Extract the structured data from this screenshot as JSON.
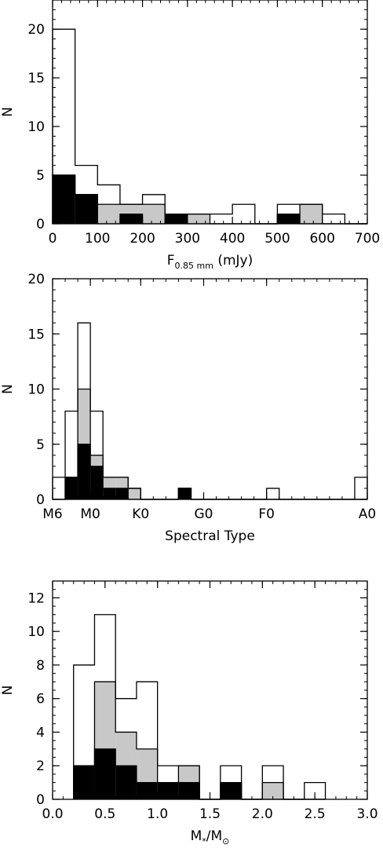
{
  "chart_data": [
    {
      "type": "bar",
      "xlabel": "F",
      "xlabel_sub": "0.85 mm",
      "xlabel_suffix": " (mJy)",
      "ylabel": "N",
      "xlim": [
        0,
        700
      ],
      "ylim": [
        0,
        23
      ],
      "xticks": [
        0,
        100,
        200,
        300,
        400,
        500,
        600,
        700
      ],
      "xtick_labels": [
        "0",
        "100",
        "200",
        "300",
        "400",
        "500",
        "600",
        "700"
      ],
      "yticks": [
        0,
        5,
        10,
        15,
        20
      ],
      "ytick_labels": [
        "0",
        "5",
        "10",
        "15",
        "20"
      ],
      "bin_edges": [
        0,
        50,
        100,
        150,
        200,
        250,
        300,
        350,
        400,
        450,
        500,
        550,
        600,
        650,
        700
      ],
      "series": [
        {
          "fill": "white",
          "values": [
            20,
            6,
            4,
            2,
            3,
            1,
            1,
            1,
            2,
            0,
            2,
            2,
            1,
            0
          ]
        },
        {
          "fill": "gray",
          "values": [
            5,
            3,
            2,
            2,
            2,
            1,
            1,
            0,
            0,
            0,
            1,
            2,
            0,
            0
          ]
        },
        {
          "fill": "black",
          "values": [
            5,
            3,
            0,
            1,
            0,
            1,
            0,
            0,
            0,
            0,
            1,
            0,
            0,
            0
          ]
        }
      ],
      "colors": {
        "white": "#ffffff",
        "gray": "#c8c8c8",
        "black": "#000000"
      }
    },
    {
      "type": "bar",
      "xlabel": "Spectral Type",
      "ylabel": "N",
      "xlim": [
        0,
        50
      ],
      "ylim": [
        0,
        20
      ],
      "xticks": [
        0,
        6,
        14,
        24,
        34,
        50
      ],
      "xtick_labels": [
        "M6",
        "M0",
        "K0",
        "G0",
        "F0",
        "A0"
      ],
      "yticks": [
        0,
        5,
        10,
        15,
        20
      ],
      "ytick_labels": [
        "0",
        "5",
        "10",
        "15",
        "20"
      ],
      "bin_edges": [
        0,
        2,
        4,
        6,
        8,
        10,
        12,
        14,
        16,
        18,
        20,
        22,
        24,
        26,
        28,
        30,
        32,
        34,
        36,
        38,
        40,
        42,
        44,
        46,
        48,
        50
      ],
      "series": [
        {
          "fill": "white",
          "values": [
            2,
            8,
            16,
            8,
            2,
            2,
            1,
            0,
            0,
            0,
            1,
            0,
            0,
            0,
            0,
            0,
            0,
            1,
            0,
            0,
            0,
            0,
            0,
            0,
            2
          ]
        },
        {
          "fill": "gray",
          "values": [
            0,
            2,
            10,
            4,
            2,
            2,
            1,
            0,
            0,
            0,
            1,
            0,
            0,
            0,
            0,
            0,
            0,
            0,
            0,
            0,
            0,
            0,
            0,
            0,
            0
          ]
        },
        {
          "fill": "black",
          "values": [
            0,
            2,
            5,
            3,
            1,
            1,
            0,
            0,
            0,
            0,
            1,
            0,
            0,
            0,
            0,
            0,
            0,
            0,
            0,
            0,
            0,
            0,
            0,
            0,
            0
          ]
        }
      ],
      "colors": {
        "white": "#ffffff",
        "gray": "#c8c8c8",
        "black": "#000000"
      }
    },
    {
      "type": "bar",
      "xlabel": "M",
      "xlabel_sub": "*",
      "xlabel_suffix": "/M",
      "xlabel_sub2": "⊙",
      "ylabel": "N",
      "xlim": [
        0,
        3
      ],
      "ylim": [
        0,
        13
      ],
      "xticks": [
        0,
        0.5,
        1.0,
        1.5,
        2.0,
        2.5,
        3.0
      ],
      "xtick_labels": [
        "0.0",
        "0.5",
        "1.0",
        "1.5",
        "2.0",
        "2.5",
        "3.0"
      ],
      "yticks": [
        0,
        2,
        4,
        6,
        8,
        10,
        12
      ],
      "ytick_labels": [
        "0",
        "2",
        "4",
        "6",
        "8",
        "10",
        "12"
      ],
      "bin_edges": [
        0.2,
        0.4,
        0.6,
        0.8,
        1.0,
        1.2,
        1.4,
        1.6,
        1.8,
        2.0,
        2.2,
        2.4,
        2.6
      ],
      "series": [
        {
          "fill": "white",
          "values": [
            8,
            11,
            6,
            7,
            2,
            2,
            0,
            2,
            0,
            2,
            0,
            1
          ]
        },
        {
          "fill": "gray",
          "values": [
            2,
            7,
            4,
            3,
            1,
            2,
            0,
            1,
            0,
            1,
            0,
            0
          ]
        },
        {
          "fill": "black",
          "values": [
            2,
            3,
            2,
            1,
            1,
            1,
            0,
            1,
            0,
            0,
            0,
            0
          ]
        }
      ],
      "colors": {
        "white": "#ffffff",
        "gray": "#c8c8c8",
        "black": "#000000"
      }
    }
  ]
}
